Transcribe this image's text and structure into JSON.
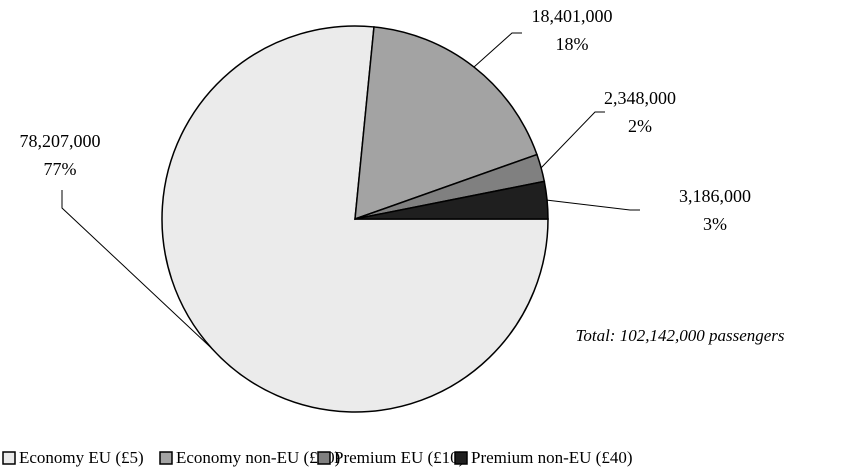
{
  "chart_data": {
    "type": "pie",
    "categories": [
      "Economy EU (£5)",
      "Economy non-EU (£20)",
      "Premium EU (£10)",
      "Premium non-EU (£40)"
    ],
    "values": [
      78207000,
      18401000,
      2348000,
      3186000
    ],
    "value_labels": [
      "78,207,000",
      "18,401,000",
      "2,348,000",
      "3,186,000"
    ],
    "percent_labels": [
      "77%",
      "18%",
      "2%",
      "3%"
    ],
    "colors": [
      "#ebebeb",
      "#a3a3a3",
      "#808080",
      "#1f1f1f"
    ],
    "annotation": "Total: 102,142,000 passengers",
    "legend": "bottom"
  }
}
